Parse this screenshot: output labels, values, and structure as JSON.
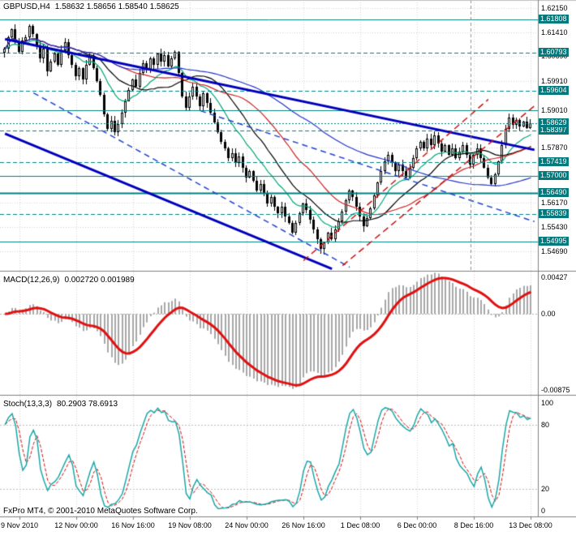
{
  "header": {
    "symbol_period": "GBPUSD,H4",
    "quote_line": "1.58632 1.58656 1.58540 1.58625"
  },
  "footer": {
    "copyright": "FxPro MT4, © 2001-2010 MetaQuotes Software Corp."
  },
  "colors": {
    "background": "#ffffff",
    "grid": "#d6d6d6",
    "separator": "#7f7f7f",
    "axis_text": "#000000",
    "candle_up": "#ffffff",
    "candle_down": "#000000",
    "candle_outline": "#000000",
    "level_line": "#008080",
    "label_box_bg": "#02797c",
    "label_box_text": "#ffffff",
    "current_price_line": "#02797c",
    "macd_histogram": "#a8a8a8",
    "macd_signal": "#e01010",
    "macd_zero": "#b4b4b4",
    "stoch_k": "#1ba8a8",
    "stoch_d": "#d01010",
    "stoch_level": "#bdbdbd",
    "vline": "#909090",
    "blue_trend": "#0000bb",
    "blue_trend_dashed": "#2244cc",
    "red_trend": "#cc1111"
  },
  "chart_data": [
    {
      "type": "candlestick",
      "title": "GBPUSD,H4",
      "x_labels": [
        "9 Nov 2010",
        "12 Nov 00:00",
        "16 Nov 16:00",
        "19 Nov 08:00",
        "24 Nov 00:00",
        "26 Nov 16:00",
        "1 Dec 08:00",
        "6 Dec 00:00",
        "8 Dec 16:00",
        "13 Dec 08:00"
      ],
      "x_label_bars": [
        4,
        20,
        36,
        52,
        68,
        84,
        100,
        116,
        132,
        148
      ],
      "closes": [
        1.609,
        1.6125,
        1.615,
        1.611,
        1.608,
        1.6115,
        1.6125,
        1.616,
        1.6135,
        1.61,
        1.606,
        1.609,
        1.602,
        1.605,
        1.6075,
        1.604,
        1.6085,
        1.611,
        1.607,
        1.604,
        1.6005,
        1.603,
        1.5995,
        1.604,
        1.6065,
        1.603,
        1.599,
        1.595,
        1.589,
        1.5845,
        1.587,
        1.5835,
        1.586,
        1.5895,
        1.593,
        1.5965,
        1.5995,
        1.5975,
        1.6015,
        1.6045,
        1.6025,
        1.606,
        1.604,
        1.6075,
        1.605,
        1.607,
        1.6035,
        1.606,
        1.608,
        1.6015,
        1.5945,
        1.591,
        1.5945,
        1.5975,
        1.5945,
        1.5915,
        1.5955,
        1.5925,
        1.5895,
        1.5865,
        1.5835,
        1.5805,
        1.5785,
        1.5755,
        1.577,
        1.574,
        1.576,
        1.5725,
        1.5695,
        1.5715,
        1.5685,
        1.5655,
        1.5675,
        1.5645,
        1.5615,
        1.5635,
        1.5605,
        1.5585,
        1.5605,
        1.5575,
        1.5555,
        1.5525,
        1.5555,
        1.5585,
        1.5615,
        1.5595,
        1.5565,
        1.5535,
        1.5505,
        1.5475,
        1.5495,
        1.5525,
        1.5505,
        1.5535,
        1.556,
        1.559,
        1.5625,
        1.5655,
        1.5635,
        1.5605,
        1.5575,
        1.5545,
        1.557,
        1.56,
        1.564,
        1.568,
        1.5715,
        1.5745,
        1.5765,
        1.574,
        1.5715,
        1.5735,
        1.5715,
        1.5695,
        1.5725,
        1.5755,
        1.5785,
        1.5805,
        1.5785,
        1.5815,
        1.5795,
        1.5825,
        1.58,
        1.5775,
        1.5795,
        1.5765,
        1.5785,
        1.5755,
        1.5775,
        1.5795,
        1.5765,
        1.5735,
        1.5765,
        1.5785,
        1.5755,
        1.5725,
        1.5695,
        1.5675,
        1.5705,
        1.5745,
        1.5795,
        1.5845,
        1.588,
        1.5858,
        1.5872,
        1.5852,
        1.5868,
        1.5848,
        1.58625
      ],
      "y_range": [
        1.5409,
        1.624
      ],
      "y_ticks": [
        {
          "value": 1.6215,
          "label": "1.62150"
        },
        {
          "value": 1.6141,
          "label": "1.61410"
        },
        {
          "value": 1.6069,
          "label": "1.60690"
        },
        {
          "value": 1.5991,
          "label": "1.59910"
        },
        {
          "value": 1.5901,
          "label": "1.59010"
        },
        {
          "value": 1.5787,
          "label": "1.57870"
        },
        {
          "value": 1.5617,
          "label": "1.56170"
        },
        {
          "value": 1.5543,
          "label": "1.55430"
        },
        {
          "value": 1.5469,
          "label": "1.54690"
        }
      ],
      "price_lines": [
        {
          "value": 1.61808,
          "label": "1.61808",
          "style": "solid",
          "width": 1,
          "boxed": true
        },
        {
          "value": 1.60793,
          "label": "1.60793",
          "style": "dashed",
          "width": 1,
          "boxed": true
        },
        {
          "value": 1.59604,
          "label": "1.59604",
          "style": "dashed",
          "width": 1,
          "boxed": true
        },
        {
          "value": 1.5901,
          "label": "1.59010",
          "style": "solid",
          "width": 1,
          "boxed": false
        },
        {
          "value": 1.58397,
          "label": "1.58397",
          "style": "dashed",
          "width": 1,
          "boxed": true
        },
        {
          "value": 1.57419,
          "label": "1.57419",
          "style": "dashed",
          "width": 1,
          "boxed": true
        },
        {
          "value": 1.57,
          "label": "1.57000",
          "style": "solid",
          "width": 1,
          "boxed": true
        },
        {
          "value": 1.5649,
          "label": "1.56490",
          "style": "solid",
          "width": 2,
          "boxed": true
        },
        {
          "value": 1.55839,
          "label": "1.55839",
          "style": "dashed",
          "width": 1,
          "boxed": true
        },
        {
          "value": 1.54995,
          "label": "1.54995",
          "style": "solid",
          "width": 1,
          "boxed": true
        }
      ],
      "current_price": {
        "value": 1.58629,
        "label": "1.58629"
      },
      "moving_averages": [
        {
          "period": 13,
          "method": "ema",
          "color": "#00a878"
        },
        {
          "period": 21,
          "method": "sma",
          "color": "#000000"
        },
        {
          "period": 34,
          "method": "sma",
          "color": "#cc2222"
        },
        {
          "period": 72,
          "method": "sma",
          "color": "#2233cc"
        }
      ],
      "trend_lines": [
        {
          "b1": 0,
          "p1": 1.612,
          "b2": 149,
          "p2": 1.578,
          "color": "#0000bb",
          "width": 3,
          "dash": []
        },
        {
          "b1": 0,
          "p1": 1.583,
          "b2": 92,
          "p2": 1.5415,
          "color": "#0000bb",
          "width": 3,
          "dash": []
        },
        {
          "b1": 8,
          "p1": 1.5955,
          "b2": 97,
          "p2": 1.542,
          "color": "#2244cc",
          "width": 1.5,
          "dash": [
            7,
            5
          ]
        },
        {
          "b1": 55,
          "p1": 1.59,
          "b2": 149,
          "p2": 1.556,
          "color": "#2244cc",
          "width": 1.5,
          "dash": [
            7,
            5
          ]
        },
        {
          "b1": 84,
          "p1": 1.544,
          "b2": 136,
          "p2": 1.5935,
          "color": "#cc1111",
          "width": 1.5,
          "dash": [
            8,
            5
          ]
        },
        {
          "b1": 95,
          "p1": 1.5425,
          "b2": 149,
          "p2": 1.5915,
          "color": "#cc1111",
          "width": 1.5,
          "dash": [
            8,
            5
          ]
        }
      ],
      "vertical_line": {
        "bar": 131
      }
    },
    {
      "type": "macd",
      "label": "MACD(12,26,9)",
      "values": "0.002720 0.001989",
      "fast": 12,
      "slow": 26,
      "signal": 9,
      "y_range": [
        -0.00933,
        0.0048
      ],
      "y_ticks": [
        {
          "value": 0.00427,
          "label": "0.00427"
        },
        {
          "value": 0,
          "label": "0.00"
        },
        {
          "value": -0.00875,
          "label": "-0.00875"
        }
      ]
    },
    {
      "type": "stochastic",
      "label": "Stoch(13,3,3)",
      "values": "80.2903 78.6913",
      "k_period": 13,
      "slowing": 3,
      "d_period": 3,
      "levels": [
        80,
        20
      ],
      "y_range": [
        -5.3,
        106
      ],
      "y_ticks": [
        {
          "value": 100,
          "label": "100"
        },
        {
          "value": 80,
          "label": "80"
        },
        {
          "value": 20,
          "label": "20"
        },
        {
          "value": 0,
          "label": "0"
        }
      ]
    }
  ]
}
